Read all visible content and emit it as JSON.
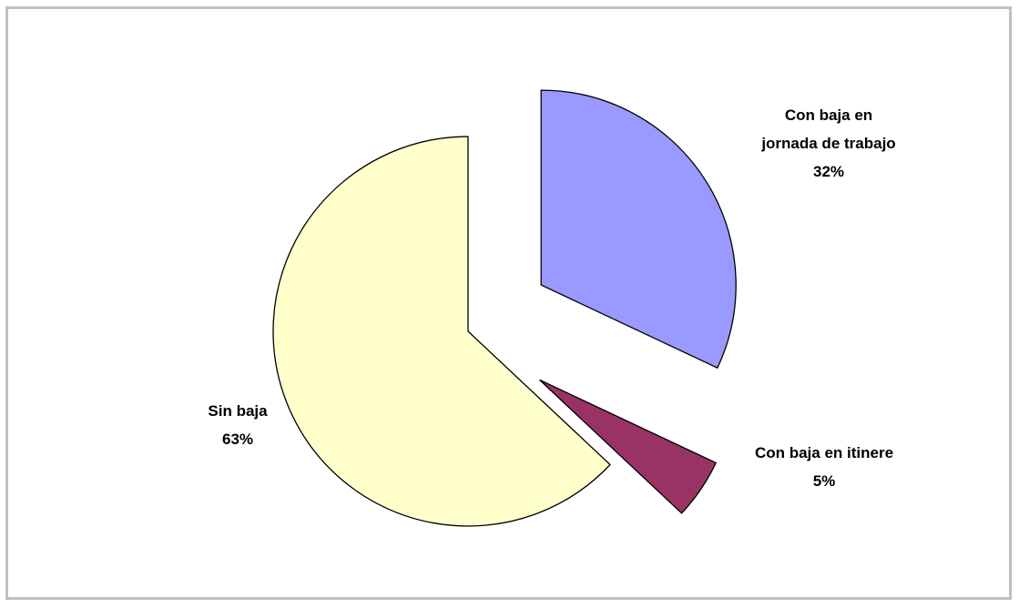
{
  "chart_data": {
    "type": "pie",
    "title": "",
    "slices": [
      {
        "label_lines": [
          "Con baja en",
          "jornada de trabajo"
        ],
        "percent_label": "32%",
        "value": 32,
        "color": "#9999ff"
      },
      {
        "label_lines": [
          "Con baja en itinere"
        ],
        "percent_label": "5%",
        "value": 5,
        "color": "#993366"
      },
      {
        "label_lines": [
          "Sin baja"
        ],
        "percent_label": "63%",
        "value": 63,
        "color": "#ffffcc"
      }
    ],
    "exploded": [
      true,
      true,
      false
    ],
    "start_angle": "12 o'clock",
    "direction": "clockwise",
    "legend": "none",
    "border_color": "#000000"
  }
}
